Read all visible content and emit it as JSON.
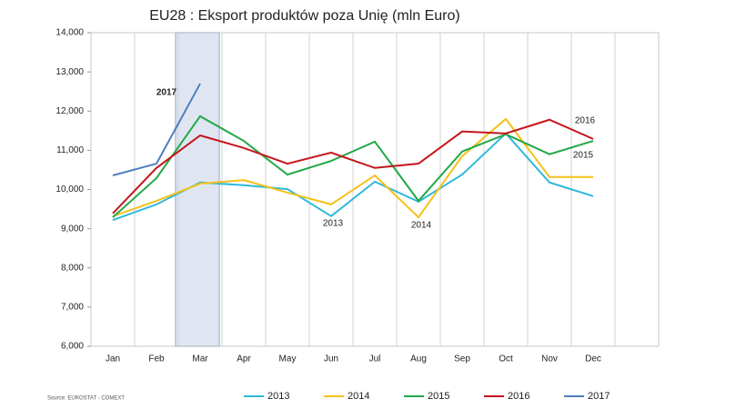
{
  "chart_data": {
    "type": "line",
    "title": "EU28 : Eksport produktów poza Unię (mln Euro)",
    "source": "Source: EUROSTAT - COMEXT",
    "categories": [
      "Jan",
      "Feb",
      "Mar",
      "Apr",
      "May",
      "Jun",
      "Jul",
      "Aug",
      "Sep",
      "Oct",
      "Nov",
      "Dec"
    ],
    "series": [
      {
        "name": "2013",
        "color": "#2fb8d9",
        "values": [
          9220,
          9620,
          10180,
          10110,
          10010,
          9320,
          10200,
          9690,
          10380,
          11430,
          10180,
          9830
        ]
      },
      {
        "name": "2014",
        "color": "#f5c11a",
        "values": [
          9320,
          9710,
          10150,
          10240,
          9920,
          9620,
          10360,
          9290,
          10850,
          11800,
          10320,
          10320
        ]
      },
      {
        "name": "2015",
        "color": "#22a847",
        "values": [
          9290,
          10290,
          11870,
          11240,
          10380,
          10730,
          11220,
          9710,
          10970,
          11410,
          10900,
          11240
        ]
      },
      {
        "name": "2016",
        "color": "#c4161c",
        "values": [
          9390,
          10550,
          11380,
          11060,
          10660,
          10940,
          10550,
          10660,
          11480,
          11430,
          11780,
          11290
        ]
      },
      {
        "name": "2017",
        "color": "#4e7fc0",
        "values": [
          10360,
          10660,
          12700,
          null,
          null,
          null,
          null,
          null,
          null,
          null,
          null,
          null
        ]
      }
    ],
    "annotations": [
      "2017",
      "2016",
      "2015",
      "2013",
      "2014"
    ],
    "ylim": [
      6000,
      14000
    ],
    "yticks": [
      {
        "value": 6000,
        "label": "6,000"
      },
      {
        "value": 7000,
        "label": "7,000"
      },
      {
        "value": 8000,
        "label": "8,000"
      },
      {
        "value": 9000,
        "label": "9,000"
      },
      {
        "value": 10000,
        "label": "10,000"
      },
      {
        "value": 11000,
        "label": "11,000"
      },
      {
        "value": 12000,
        "label": "12,000"
      },
      {
        "value": 13000,
        "label": "13,000"
      },
      {
        "value": 14000,
        "label": "14,000"
      }
    ],
    "grid": true
  }
}
